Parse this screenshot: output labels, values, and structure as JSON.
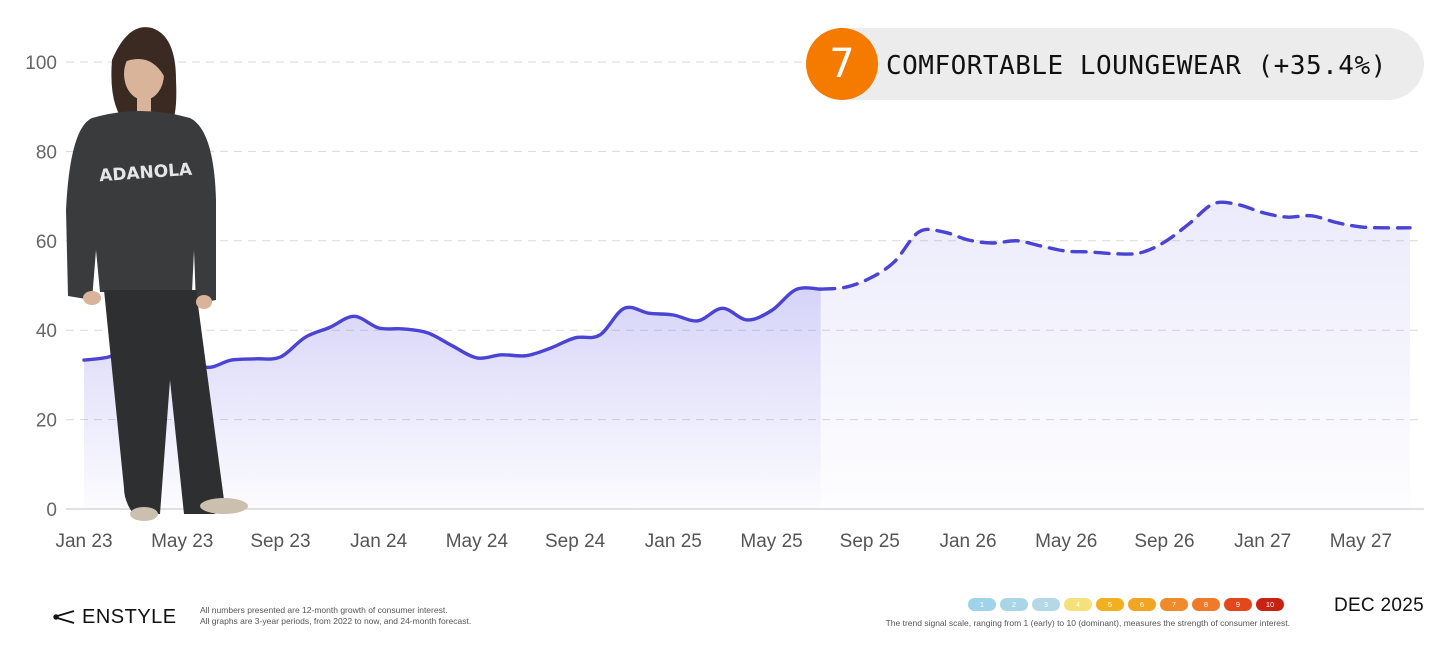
{
  "badge": {
    "rank": "7",
    "label": "COMFORTABLE LOUNGEWEAR (+35.4%)",
    "accent": "#f47a00"
  },
  "chart_data": {
    "type": "area",
    "x_tick_labels": [
      "Jan 23",
      "May 23",
      "Sep 23",
      "Jan 24",
      "May 24",
      "Sep 24",
      "Jan 25",
      "May 25",
      "Sep 25",
      "Jan 26",
      "May 26",
      "Sep 26",
      "Jan 27",
      "May 27"
    ],
    "ylim": [
      0,
      100
    ],
    "y_ticks": [
      0,
      20,
      40,
      60,
      80,
      100
    ],
    "grid": true,
    "line_color": "#4a43d4",
    "x_start": "Jan 23",
    "x_end": "Jul 27",
    "series": [
      {
        "style": "solid",
        "x": [
          "Jan 23",
          "Feb 23",
          "Mar 23",
          "Apr 23",
          "May 23",
          "Jun 23",
          "Jul 23",
          "Aug 23",
          "Sep 23",
          "Oct 23",
          "Nov 23",
          "Dec 23",
          "Jan 24",
          "Feb 24",
          "Mar 24",
          "Apr 24",
          "May 24",
          "Jun 24",
          "Jul 24",
          "Aug 24",
          "Sep 24",
          "Oct 24",
          "Nov 24",
          "Dec 24",
          "Jan 25",
          "Feb 25",
          "Mar 25",
          "Apr 25",
          "May 25",
          "Jun 25",
          "Jul 25"
        ],
        "y": [
          33.3,
          34,
          36,
          35.3,
          34.5,
          31.7,
          33.3,
          33.6,
          34,
          38.4,
          40.6,
          43.1,
          40.5,
          40.3,
          39.4,
          36.5,
          33.8,
          34.5,
          34.3,
          36,
          38.3,
          38.9,
          44.9,
          43.8,
          43.4,
          42.1,
          44.9,
          42.3,
          44.4,
          49.1,
          49.2
        ]
      },
      {
        "style": "dashed",
        "x": [
          "Jul 25",
          "Aug 25",
          "Sep 25",
          "Oct 25",
          "Nov 25",
          "Dec 25",
          "Jan 26",
          "Feb 26",
          "Mar 26",
          "Apr 26",
          "May 26",
          "Jun 26",
          "Jul 26",
          "Aug 26",
          "Sep 26",
          "Oct 26",
          "Nov 26",
          "Dec 26",
          "Jan 27",
          "Feb 27",
          "Mar 27",
          "Apr 27",
          "May 27",
          "Jun 27",
          "Jul 27"
        ],
        "y": [
          49.2,
          49.6,
          51.6,
          55.3,
          62,
          62,
          60.2,
          59.5,
          60,
          58.8,
          57.7,
          57.5,
          57.1,
          57.3,
          59.7,
          63.8,
          68.3,
          68.1,
          66.3,
          65.3,
          65.6,
          64.1,
          63.1,
          62.9,
          62.9
        ]
      }
    ]
  },
  "footer": {
    "brand_name": "ENSTYLE",
    "note_1": "All numbers presented are 12-month growth of consumer interest.",
    "note_2": "All graphs are 3-year periods, from 2022 to now, and 24-month forecast.",
    "scale": [
      {
        "label": "1",
        "color": "#9fd3ea"
      },
      {
        "label": "2",
        "color": "#a9d5e6"
      },
      {
        "label": "3",
        "color": "#b4d9e6"
      },
      {
        "label": "4",
        "color": "#f6e07a"
      },
      {
        "label": "5",
        "color": "#f2b021"
      },
      {
        "label": "6",
        "color": "#f1a623"
      },
      {
        "label": "7",
        "color": "#f08a2a"
      },
      {
        "label": "8",
        "color": "#ee7a2a"
      },
      {
        "label": "9",
        "color": "#e2481c"
      },
      {
        "label": "10",
        "color": "#c72212"
      }
    ],
    "scale_note": "The trend signal scale, ranging from 1 (early) to 10 (dominant), measures the strength of consumer interest.",
    "date": "DEC 2025"
  }
}
